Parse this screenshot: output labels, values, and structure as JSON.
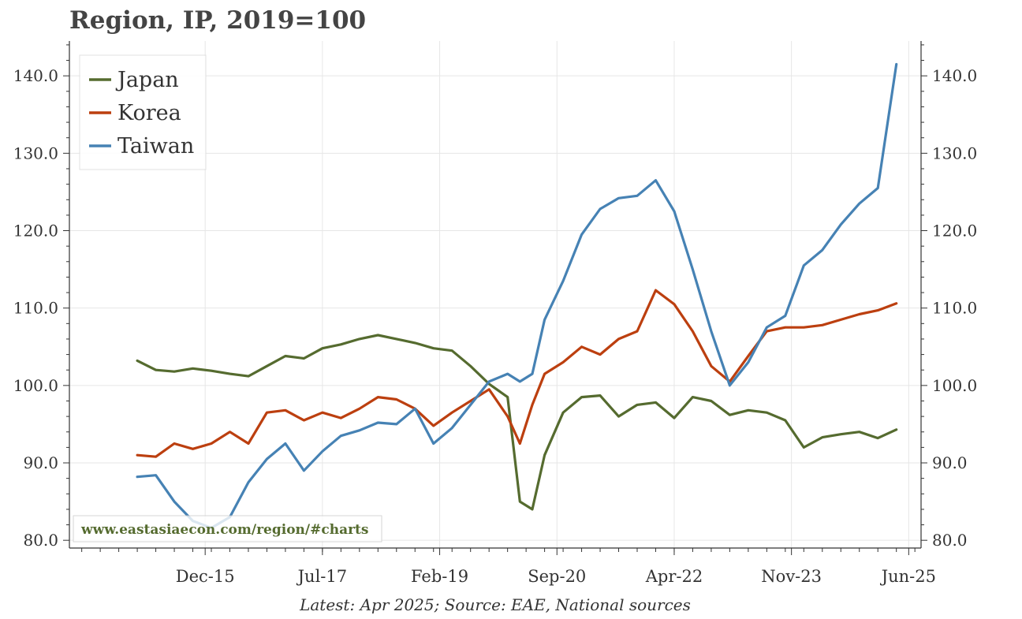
{
  "chart_data": {
    "type": "line",
    "title": "Region, IP, 2019=100",
    "caption": "Latest: Apr 2025; Source: EAE, National sources",
    "watermark": "www.eastasiaecon.com/region/#charts",
    "xlabel": "",
    "ylabel": "",
    "x_ticks": [
      "Dec-15",
      "Jul-17",
      "Feb-19",
      "Sep-20",
      "Apr-22",
      "Nov-23",
      "Jun-25"
    ],
    "y_ticks": [
      "80.0",
      "90.0",
      "100.0",
      "110.0",
      "120.0",
      "130.0",
      "140.0"
    ],
    "ylim": [
      79,
      144.5
    ],
    "xlim": [
      "2014-02",
      "2025-08"
    ],
    "grid": true,
    "legend_position": "top-left",
    "dual_y_axis_mirrored": true,
    "series": [
      {
        "name": "Japan",
        "color": "#556b2f",
        "x": [
          "2015-01",
          "2015-04",
          "2015-07",
          "2015-10",
          "2016-01",
          "2016-04",
          "2016-07",
          "2016-10",
          "2017-01",
          "2017-04",
          "2017-07",
          "2017-10",
          "2018-01",
          "2018-04",
          "2018-07",
          "2018-10",
          "2019-01",
          "2019-04",
          "2019-07",
          "2019-10",
          "2020-01",
          "2020-03",
          "2020-05",
          "2020-07",
          "2020-10",
          "2021-01",
          "2021-04",
          "2021-07",
          "2021-10",
          "2022-01",
          "2022-04",
          "2022-07",
          "2022-10",
          "2023-01",
          "2023-04",
          "2023-07",
          "2023-10",
          "2024-01",
          "2024-04",
          "2024-07",
          "2024-10",
          "2025-01",
          "2025-04"
        ],
        "y": [
          103.2,
          102.0,
          101.8,
          102.2,
          101.9,
          101.5,
          101.2,
          102.5,
          103.8,
          103.5,
          104.8,
          105.3,
          106.0,
          106.5,
          106.0,
          105.5,
          104.8,
          104.5,
          102.5,
          100.2,
          98.5,
          85.0,
          84.0,
          91.0,
          96.5,
          98.5,
          98.7,
          96.0,
          97.5,
          97.8,
          95.8,
          98.5,
          98.0,
          96.2,
          96.8,
          96.5,
          95.5,
          92.0,
          93.3,
          93.7,
          94.0,
          93.2,
          94.3
        ]
      },
      {
        "name": "Korea",
        "color": "#bc3f0f",
        "x": [
          "2015-01",
          "2015-04",
          "2015-07",
          "2015-10",
          "2016-01",
          "2016-04",
          "2016-07",
          "2016-10",
          "2017-01",
          "2017-04",
          "2017-07",
          "2017-10",
          "2018-01",
          "2018-04",
          "2018-07",
          "2018-10",
          "2019-01",
          "2019-04",
          "2019-07",
          "2019-10",
          "2020-01",
          "2020-03",
          "2020-05",
          "2020-07",
          "2020-10",
          "2021-01",
          "2021-04",
          "2021-07",
          "2021-10",
          "2022-01",
          "2022-04",
          "2022-07",
          "2022-10",
          "2023-01",
          "2023-04",
          "2023-07",
          "2023-10",
          "2024-01",
          "2024-04",
          "2024-07",
          "2024-10",
          "2025-01",
          "2025-04"
        ],
        "y": [
          91.0,
          90.8,
          92.5,
          91.8,
          92.5,
          94.0,
          92.5,
          96.5,
          96.8,
          95.5,
          96.5,
          95.8,
          97.0,
          98.5,
          98.2,
          97.0,
          94.8,
          96.5,
          98.0,
          99.5,
          96.0,
          92.5,
          97.5,
          101.5,
          103.0,
          105.0,
          104.0,
          106.0,
          107.0,
          112.3,
          110.5,
          107.0,
          102.5,
          100.5,
          103.8,
          107.0,
          107.5,
          107.5,
          107.8,
          108.5,
          109.2,
          109.7,
          110.6
        ]
      },
      {
        "name": "Taiwan",
        "color": "#4682b4",
        "x": [
          "2015-01",
          "2015-04",
          "2015-07",
          "2015-10",
          "2016-01",
          "2016-04",
          "2016-07",
          "2016-10",
          "2017-01",
          "2017-04",
          "2017-07",
          "2017-10",
          "2018-01",
          "2018-04",
          "2018-07",
          "2018-10",
          "2019-01",
          "2019-04",
          "2019-07",
          "2019-10",
          "2020-01",
          "2020-03",
          "2020-05",
          "2020-07",
          "2020-10",
          "2021-01",
          "2021-04",
          "2021-07",
          "2021-10",
          "2022-01",
          "2022-04",
          "2022-07",
          "2022-10",
          "2023-01",
          "2023-04",
          "2023-07",
          "2023-10",
          "2024-01",
          "2024-04",
          "2024-07",
          "2024-10",
          "2025-01",
          "2025-04"
        ],
        "y": [
          88.2,
          88.4,
          85.0,
          82.5,
          81.6,
          83.0,
          87.5,
          90.5,
          92.5,
          89.0,
          91.5,
          93.5,
          94.2,
          95.2,
          95.0,
          97.0,
          92.5,
          94.5,
          97.5,
          100.5,
          101.5,
          100.5,
          101.5,
          108.5,
          113.5,
          119.5,
          122.8,
          124.2,
          124.5,
          126.5,
          122.5,
          115.0,
          107.0,
          100.0,
          103.0,
          107.5,
          109.0,
          115.5,
          117.5,
          120.8,
          123.5,
          125.5,
          141.5
        ]
      }
    ]
  }
}
